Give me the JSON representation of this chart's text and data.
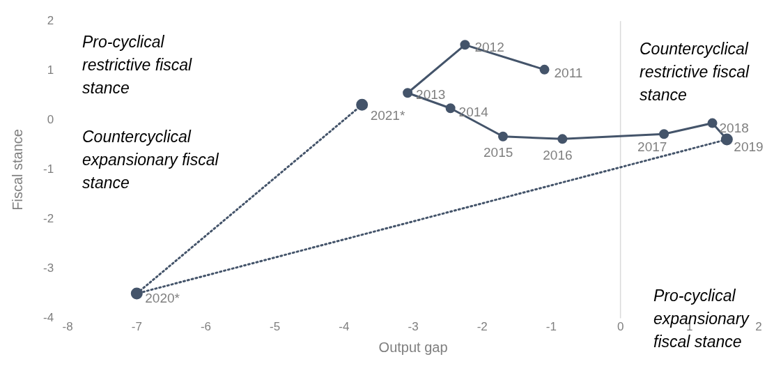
{
  "chart_data": {
    "type": "line",
    "xlabel": "Output gap",
    "ylabel": "Fiscal stance",
    "xlim": [
      -8,
      2
    ],
    "xticks": [
      -8,
      -7,
      -6,
      -5,
      -4,
      -3,
      -2,
      -1,
      0,
      1,
      2
    ],
    "ylim": [
      -4,
      2
    ],
    "yticks": [
      -4,
      -3,
      -2,
      -1,
      0,
      1,
      2
    ],
    "grid": false,
    "legend": false,
    "marker": "circle",
    "series": [
      {
        "color": "#44546a",
        "line_style": "solid",
        "x": [
          -1.1,
          -2.25,
          -3.08,
          -2.46,
          -1.7,
          -0.84,
          0.63,
          1.33,
          1.54
        ],
        "values": [
          1.02,
          1.52,
          0.55,
          0.24,
          -0.33,
          -0.38,
          -0.28,
          -0.06,
          -0.39
        ]
      },
      {
        "color": "#44546a",
        "line_style": "dotted",
        "x": [
          1.54,
          -7.0,
          -3.74
        ],
        "values": [
          -0.39,
          -3.5,
          0.31
        ]
      }
    ],
    "ref_lines": [
      {
        "axis": "x",
        "value": 0,
        "color": "#d9d9d9"
      }
    ],
    "annotations": [
      {
        "text": "2011",
        "x": -1.1,
        "y": 1.02
      },
      {
        "text": "2012",
        "x": -2.25,
        "y": 1.52
      },
      {
        "text": "2013",
        "x": -3.08,
        "y": 0.55
      },
      {
        "text": "2014",
        "x": -2.46,
        "y": 0.24
      },
      {
        "text": "2015",
        "x": -1.7,
        "y": -0.33
      },
      {
        "text": "2016",
        "x": -0.84,
        "y": -0.38
      },
      {
        "text": "2017",
        "x": 0.63,
        "y": -0.28
      },
      {
        "text": "2018",
        "x": 1.33,
        "y": -0.06
      },
      {
        "text": "2019",
        "x": 1.54,
        "y": -0.39
      },
      {
        "text": "2020*",
        "x": -7.0,
        "y": -3.5
      },
      {
        "text": "2021*",
        "x": -3.74,
        "y": 0.31
      },
      "Pro-cyclical restrictive fiscal stance",
      "Countercyclical expansionary fiscal stance",
      "Countercyclical restrictive fiscal stance",
      "Pro-cyclical expansionary fiscal stance"
    ]
  }
}
